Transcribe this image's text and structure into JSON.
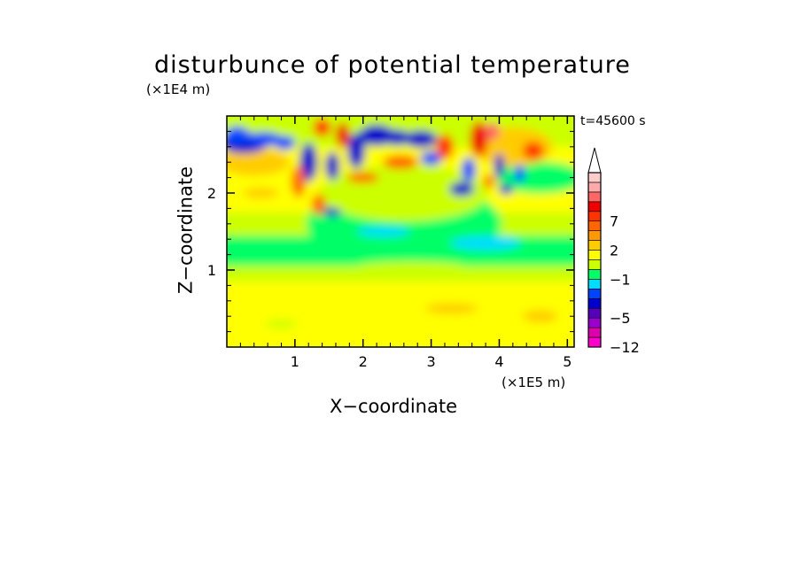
{
  "chart_data": {
    "type": "heatmap",
    "title": "disturbunce of potential temperature",
    "annotation": "t=45600 s",
    "xlabel": "X−coordinate",
    "ylabel": "Z−coordinate",
    "x_unit_label": "(×1E5 m)",
    "y_unit_label": "(×1E4 m)",
    "x_ticks": [
      {
        "value": 1,
        "label": "1"
      },
      {
        "value": 2,
        "label": "2"
      },
      {
        "value": 3,
        "label": "3"
      },
      {
        "value": 4,
        "label": "4"
      },
      {
        "value": 5,
        "label": "5"
      }
    ],
    "y_ticks": [
      {
        "value": 1,
        "label": "1"
      },
      {
        "value": 2,
        "label": "2"
      }
    ],
    "xlim": [
      0,
      5.1
    ],
    "ylim": [
      0,
      3.0
    ],
    "colorbar": {
      "colors": [
        "#ff00cc",
        "#dd00aa",
        "#9900cc",
        "#5500bb",
        "#0000cc",
        "#0044ff",
        "#00ddff",
        "#00ff66",
        "#ccff00",
        "#ffff00",
        "#ffcc00",
        "#ff9900",
        "#ff6600",
        "#ff3300",
        "#ee0000",
        "#ff6666",
        "#ffaaaa",
        "#ffcccc"
      ],
      "tick_labels": [
        {
          "label": "7",
          "bin": 13
        },
        {
          "label": "2",
          "bin": 10
        },
        {
          "label": "−1",
          "bin": 7
        },
        {
          "label": "−5",
          "bin": 3
        },
        {
          "label": "−12",
          "bin": 0
        }
      ],
      "top_arrow": true
    }
  }
}
